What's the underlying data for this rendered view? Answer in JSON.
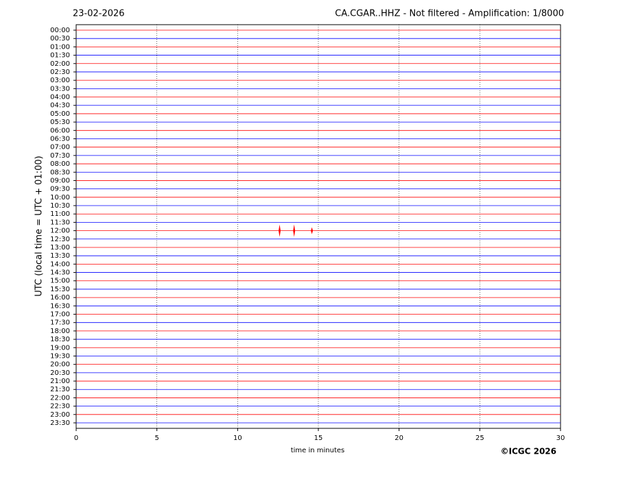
{
  "chart_data": {
    "type": "helicorder",
    "date": "23-02-2026",
    "title": "CA.CGAR..HHZ - Not filtered - Amplification: 1/8000",
    "x_label": "time in minutes",
    "y_label": "UTC (local time = UTC + 01:00)",
    "credit": "©ICGC 2026",
    "rows": [
      "00:00",
      "00:30",
      "01:00",
      "01:30",
      "02:00",
      "02:30",
      "03:00",
      "03:30",
      "04:00",
      "04:30",
      "05:00",
      "05:30",
      "06:00",
      "06:30",
      "07:00",
      "07:30",
      "08:00",
      "08:30",
      "09:00",
      "09:30",
      "10:00",
      "10:30",
      "11:00",
      "11:30",
      "12:00",
      "12:30",
      "13:00",
      "13:30",
      "14:00",
      "14:30",
      "15:00",
      "15:30",
      "16:00",
      "16:30",
      "17:00",
      "17:30",
      "18:00",
      "18:30",
      "19:00",
      "19:30",
      "20:00",
      "20:30",
      "21:00",
      "21:30",
      "22:00",
      "22:30",
      "23:00",
      "23:30"
    ],
    "colors": [
      "#ff0000",
      "#0000ff"
    ],
    "xlim": [
      0,
      30
    ],
    "xticks": [
      0,
      5,
      10,
      15,
      20,
      25,
      30
    ],
    "grid": true,
    "events": {
      "row": 24,
      "x": [
        12.6,
        13.5,
        14.6
      ]
    }
  }
}
